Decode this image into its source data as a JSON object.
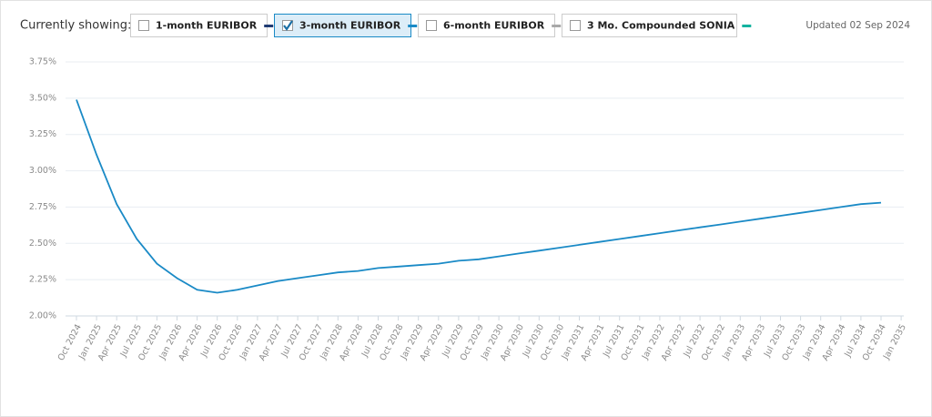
{
  "header": {
    "label": "Currently showing:",
    "updated": "Updated 02 Sep 2024"
  },
  "chart_data": {
    "type": "line",
    "legend_items": [
      {
        "name": "1-month EURIBOR",
        "color": "#1f3b73",
        "checked": false
      },
      {
        "name": "3-month EURIBOR",
        "color": "#1a8ac6",
        "checked": true
      },
      {
        "name": "6-month EURIBOR",
        "color": "#a8a8a8",
        "checked": false
      },
      {
        "name": "3 Mo. Compounded SONIA",
        "color": "#14b39f",
        "checked": false
      }
    ],
    "categories": [
      "Oct 2024",
      "Jan 2025",
      "Apr 2025",
      "Jul 2025",
      "Oct 2025",
      "Jan 2026",
      "Apr 2026",
      "Jul 2026",
      "Oct 2026",
      "Jan 2027",
      "Apr 2027",
      "Jul 2027",
      "Oct 2027",
      "Jan 2028",
      "Apr 2028",
      "Jul 2028",
      "Oct 2028",
      "Jan 2029",
      "Apr 2029",
      "Jul 2029",
      "Oct 2029",
      "Jan 2030",
      "Apr 2030",
      "Jul 2030",
      "Oct 2030",
      "Jan 2031",
      "Apr 2031",
      "Jul 2031",
      "Oct 2031",
      "Jan 2032",
      "Apr 2032",
      "Jul 2032",
      "Oct 2032",
      "Jan 2033",
      "Apr 2033",
      "Jul 2033",
      "Oct 2033",
      "Jan 2034",
      "Apr 2034",
      "Jul 2034",
      "Oct 2034",
      "Jan 2035"
    ],
    "series": [
      {
        "color": "#1a8ac6",
        "values": [
          3.49,
          3.11,
          2.77,
          2.53,
          2.36,
          2.26,
          2.18,
          2.16,
          2.18,
          2.21,
          2.24,
          2.26,
          2.28,
          2.3,
          2.31,
          2.33,
          2.34,
          2.35,
          2.36,
          2.38,
          2.39,
          2.41,
          2.43,
          2.45,
          2.47,
          2.49,
          2.51,
          2.53,
          2.55,
          2.57,
          2.59,
          2.61,
          2.63,
          2.65,
          2.67,
          2.69,
          2.71,
          2.73,
          2.75,
          2.77,
          2.78,
          null
        ]
      }
    ],
    "ylim": [
      2.0,
      3.75
    ],
    "yticks": [
      {
        "value": 2.0,
        "label": "2.00%"
      },
      {
        "value": 2.25,
        "label": "2.25%"
      },
      {
        "value": 2.5,
        "label": "2.50%"
      },
      {
        "value": 2.75,
        "label": "2.75%"
      },
      {
        "value": 3.0,
        "label": "3.00%"
      },
      {
        "value": 3.25,
        "label": "3.25%"
      },
      {
        "value": 3.5,
        "label": "3.50%"
      },
      {
        "value": 3.75,
        "label": "3.75%"
      }
    ],
    "grid": true
  }
}
